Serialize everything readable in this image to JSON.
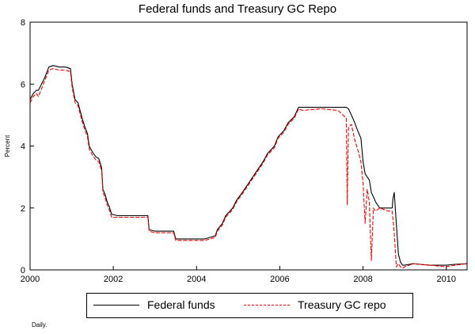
{
  "chart_data": {
    "type": "line",
    "title": "Federal funds and Treasury GC Repo",
    "ylabel": "Percent",
    "xlabel": "",
    "note": "Daily.",
    "xlim": [
      2000,
      2010.5
    ],
    "ylim": [
      0,
      8
    ],
    "xticks": [
      2000,
      2002,
      2004,
      2006,
      2008,
      2010
    ],
    "xtick_labels": [
      "2000",
      "2002",
      "2004",
      "2006",
      "2008",
      "2010"
    ],
    "yticks": [
      0,
      2,
      4,
      6,
      8
    ],
    "ytick_labels": [
      "0",
      "2",
      "4",
      "6",
      "8"
    ],
    "grid": false,
    "legend_position": "bottom",
    "series": [
      {
        "name": "Federal funds",
        "color": "#000000",
        "style": "solid",
        "x": [
          2000.0,
          2000.08,
          2000.15,
          2000.2,
          2000.35,
          2000.45,
          2000.55,
          2000.7,
          2000.85,
          2000.97,
          2001.01,
          2001.08,
          2001.15,
          2001.25,
          2001.32,
          2001.38,
          2001.42,
          2001.5,
          2001.58,
          2001.65,
          2001.72,
          2001.75,
          2001.8,
          2001.85,
          2001.9,
          2001.96,
          2002.1,
          2002.5,
          2002.83,
          2002.86,
          2003.0,
          2003.45,
          2003.5,
          2003.9,
          2004.2,
          2004.45,
          2004.5,
          2004.62,
          2004.7,
          2004.87,
          2004.96,
          2005.1,
          2005.2,
          2005.35,
          2005.45,
          2005.6,
          2005.7,
          2005.87,
          2005.96,
          2006.1,
          2006.2,
          2006.35,
          2006.45,
          2006.55,
          2007.0,
          2007.4,
          2007.6,
          2007.65,
          2007.72,
          2007.8,
          2007.87,
          2007.95,
          2008.0,
          2008.05,
          2008.1,
          2008.15,
          2008.2,
          2008.27,
          2008.3,
          2008.4,
          2008.5,
          2008.6,
          2008.7,
          2008.72,
          2008.75,
          2008.8,
          2008.85,
          2008.9,
          2008.95,
          2009.0,
          2009.2,
          2009.6,
          2010.0,
          2010.2,
          2010.5
        ],
        "y": [
          5.5,
          5.7,
          5.8,
          5.8,
          6.2,
          6.55,
          6.6,
          6.55,
          6.55,
          6.5,
          6.0,
          5.5,
          5.4,
          4.9,
          4.6,
          4.4,
          4.0,
          3.8,
          3.65,
          3.6,
          3.3,
          2.6,
          2.45,
          2.2,
          2.05,
          1.8,
          1.75,
          1.75,
          1.75,
          1.3,
          1.25,
          1.25,
          1.0,
          1.0,
          1.0,
          1.1,
          1.3,
          1.5,
          1.75,
          2.0,
          2.25,
          2.5,
          2.7,
          3.0,
          3.2,
          3.5,
          3.75,
          4.0,
          4.3,
          4.5,
          4.75,
          4.95,
          5.25,
          5.25,
          5.25,
          5.25,
          5.25,
          5.2,
          5.0,
          4.75,
          4.5,
          4.25,
          3.5,
          3.1,
          3.0,
          2.9,
          2.5,
          2.3,
          2.2,
          2.0,
          2.0,
          2.0,
          2.0,
          2.3,
          2.5,
          1.5,
          0.5,
          0.25,
          0.15,
          0.15,
          0.2,
          0.15,
          0.15,
          0.18,
          0.2
        ]
      },
      {
        "name": "Treasury GC repo",
        "color": "#ff0000",
        "style": "dashed",
        "x": [
          2000.0,
          2000.08,
          2000.15,
          2000.2,
          2000.35,
          2000.45,
          2000.55,
          2000.7,
          2000.85,
          2000.97,
          2001.01,
          2001.08,
          2001.15,
          2001.25,
          2001.32,
          2001.38,
          2001.42,
          2001.5,
          2001.58,
          2001.65,
          2001.72,
          2001.75,
          2001.8,
          2001.85,
          2001.9,
          2001.96,
          2002.1,
          2002.5,
          2002.83,
          2002.86,
          2003.0,
          2003.45,
          2003.5,
          2003.9,
          2004.2,
          2004.45,
          2004.5,
          2004.62,
          2004.7,
          2004.87,
          2004.96,
          2005.1,
          2005.2,
          2005.35,
          2005.45,
          2005.6,
          2005.7,
          2005.87,
          2005.96,
          2006.1,
          2006.2,
          2006.35,
          2006.45,
          2006.55,
          2007.0,
          2007.4,
          2007.6,
          2007.62,
          2007.65,
          2007.72,
          2007.8,
          2007.87,
          2007.95,
          2008.0,
          2008.05,
          2008.1,
          2008.15,
          2008.2,
          2008.25,
          2008.3,
          2008.4,
          2008.5,
          2008.6,
          2008.7,
          2008.75,
          2008.8,
          2008.85,
          2008.9,
          2008.95,
          2009.0,
          2009.2,
          2009.6,
          2010.0,
          2010.2,
          2010.5
        ],
        "y": [
          5.4,
          5.6,
          5.7,
          5.6,
          6.1,
          6.45,
          6.5,
          6.45,
          6.45,
          6.4,
          5.9,
          5.4,
          5.3,
          4.8,
          4.5,
          4.3,
          3.9,
          3.7,
          3.55,
          3.5,
          3.2,
          2.5,
          2.35,
          2.1,
          1.95,
          1.7,
          1.7,
          1.7,
          1.7,
          1.25,
          1.2,
          1.2,
          0.95,
          0.95,
          0.95,
          1.05,
          1.25,
          1.45,
          1.7,
          1.95,
          2.2,
          2.45,
          2.65,
          2.95,
          3.15,
          3.45,
          3.7,
          3.95,
          4.25,
          4.45,
          4.7,
          4.9,
          5.2,
          5.15,
          5.2,
          5.15,
          4.9,
          2.1,
          4.6,
          4.7,
          4.2,
          3.9,
          3.5,
          2.8,
          1.5,
          2.6,
          2.2,
          0.3,
          2.0,
          1.9,
          2.0,
          1.95,
          1.9,
          1.9,
          1.2,
          0.1,
          0.2,
          0.1,
          0.05,
          0.1,
          0.2,
          0.15,
          0.1,
          0.15,
          0.2
        ]
      }
    ]
  }
}
